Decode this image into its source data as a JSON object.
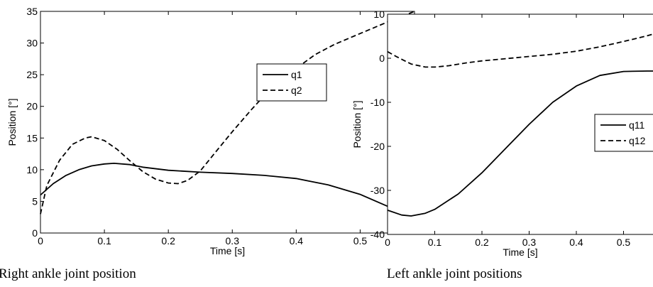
{
  "chart_data": [
    {
      "type": "line",
      "caption": "Right ankle joint position",
      "xlabel": "Time [s]",
      "ylabel": "Position [°]",
      "xlim": [
        0,
        0.585
      ],
      "ylim": [
        0,
        35
      ],
      "xticks": [
        "0",
        "0.1",
        "0.2",
        "0.3",
        "0.4",
        "0.5"
      ],
      "xtick_values": [
        0,
        0.1,
        0.2,
        0.3,
        0.4,
        0.5
      ],
      "yticks": [
        "0",
        "5",
        "10",
        "15",
        "20",
        "25",
        "30",
        "35"
      ],
      "ytick_values": [
        0,
        5,
        10,
        15,
        20,
        25,
        30,
        35
      ],
      "grid": false,
      "legend": "upper-right",
      "series": [
        {
          "name": "q1",
          "style": "solid",
          "color": "#000000",
          "x": [
            0,
            0.02,
            0.04,
            0.06,
            0.08,
            0.1,
            0.115,
            0.14,
            0.16,
            0.2,
            0.25,
            0.3,
            0.35,
            0.4,
            0.45,
            0.5,
            0.55,
            0.585
          ],
          "y": [
            6.0,
            7.8,
            9.1,
            10.0,
            10.6,
            10.9,
            11.0,
            10.8,
            10.4,
            9.9,
            9.6,
            9.4,
            9.1,
            8.6,
            7.6,
            6.1,
            3.9,
            1.8
          ]
        },
        {
          "name": "q2",
          "style": "dashed",
          "color": "#000000",
          "x": [
            0,
            0.01,
            0.03,
            0.05,
            0.07,
            0.08,
            0.1,
            0.12,
            0.14,
            0.16,
            0.18,
            0.2,
            0.215,
            0.23,
            0.25,
            0.27,
            0.3,
            0.33,
            0.36,
            0.4,
            0.43,
            0.46,
            0.5,
            0.54,
            0.585
          ],
          "y": [
            3.0,
            7.5,
            11.5,
            14.0,
            15.0,
            15.2,
            14.6,
            13.2,
            11.4,
            9.7,
            8.5,
            7.9,
            7.8,
            8.3,
            9.8,
            12.3,
            16.0,
            19.5,
            22.8,
            26.0,
            28.2,
            29.8,
            31.5,
            33.2,
            35.0
          ]
        }
      ]
    },
    {
      "type": "line",
      "caption": "Left ankle joint positions",
      "xlabel": "Time [s]",
      "ylabel": "Position [°]",
      "xlim": [
        0,
        0.585
      ],
      "ylim": [
        -40,
        10
      ],
      "xticks": [
        "0",
        "0.1",
        "0.2",
        "0.3",
        "0.4",
        "0.5"
      ],
      "xtick_values": [
        0,
        0.1,
        0.2,
        0.3,
        0.4,
        0.5
      ],
      "yticks": [
        "-40",
        "-30",
        "-20",
        "-10",
        "0",
        "10"
      ],
      "ytick_values": [
        -40,
        -30,
        -20,
        -10,
        0,
        10
      ],
      "grid": false,
      "legend": "right",
      "series": [
        {
          "name": "q11",
          "style": "solid",
          "color": "#000000",
          "x": [
            0,
            0.03,
            0.05,
            0.08,
            0.1,
            0.15,
            0.2,
            0.25,
            0.3,
            0.35,
            0.4,
            0.45,
            0.5,
            0.55,
            0.585
          ],
          "y": [
            -34.5,
            -35.6,
            -35.8,
            -35.2,
            -34.3,
            -30.8,
            -26.0,
            -20.5,
            -15.0,
            -10.0,
            -6.3,
            -3.9,
            -3.0,
            -2.9,
            -2.9
          ]
        },
        {
          "name": "q12",
          "style": "dashed",
          "color": "#000000",
          "x": [
            0,
            0.02,
            0.05,
            0.08,
            0.1,
            0.13,
            0.17,
            0.2,
            0.25,
            0.3,
            0.35,
            0.4,
            0.45,
            0.5,
            0.55,
            0.585
          ],
          "y": [
            1.5,
            0.3,
            -1.3,
            -2.0,
            -2.0,
            -1.7,
            -1.0,
            -0.6,
            -0.1,
            0.4,
            0.9,
            1.6,
            2.6,
            3.8,
            5.1,
            6.2
          ]
        }
      ]
    }
  ]
}
